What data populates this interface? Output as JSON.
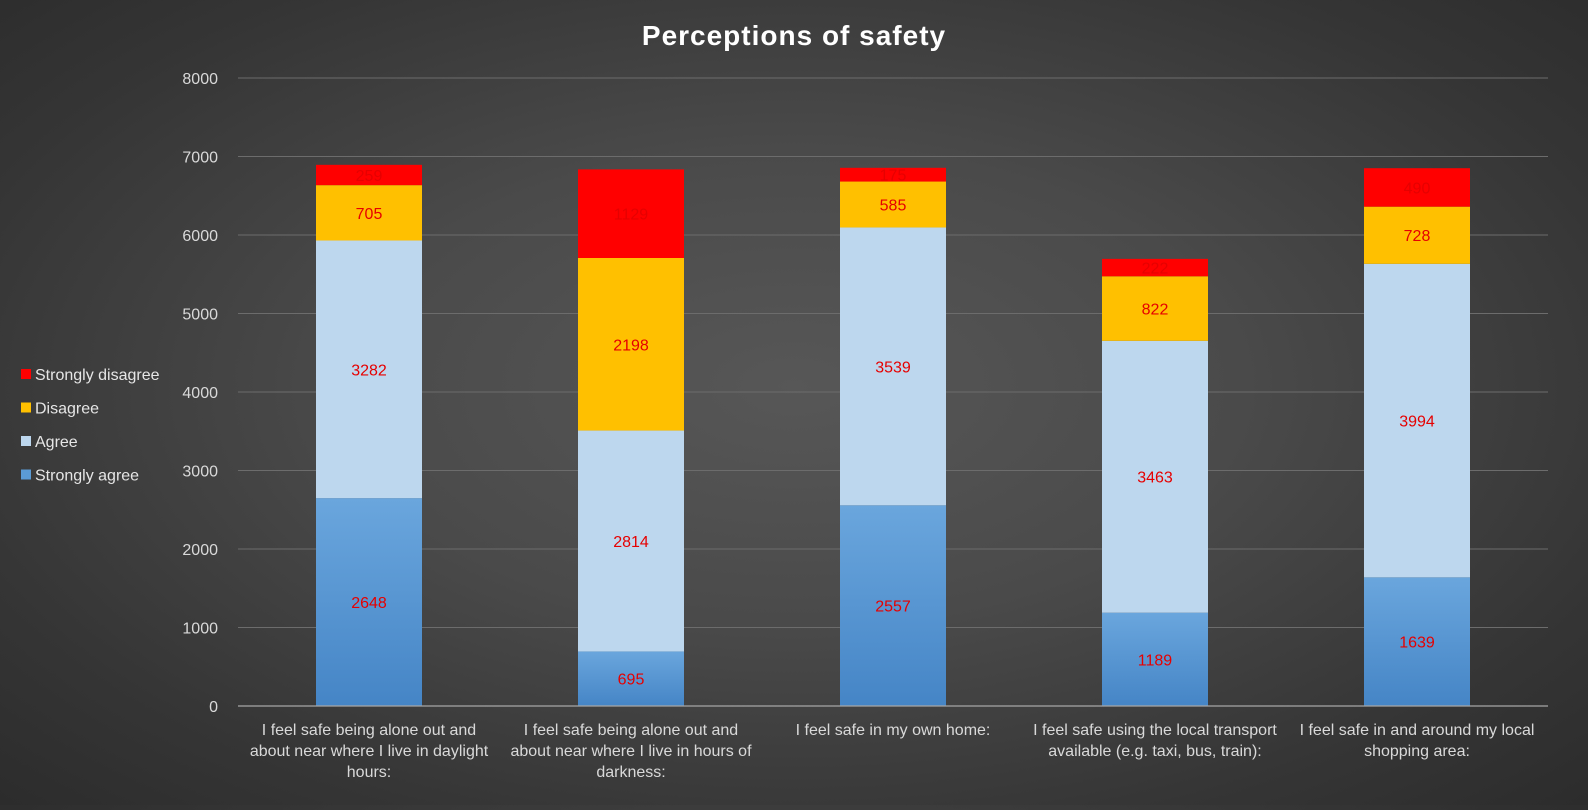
{
  "chart_data": {
    "type": "bar",
    "stacked": true,
    "title": "Perceptions of safety",
    "xlabel": "",
    "ylabel": "",
    "ylim": [
      0,
      8000
    ],
    "yticks": [
      0,
      1000,
      2000,
      3000,
      4000,
      5000,
      6000,
      7000,
      8000
    ],
    "grid": true,
    "legend_position": "left",
    "categories": [
      [
        "I feel safe being alone out and",
        "about near where I live in daylight",
        "hours:"
      ],
      [
        "I feel safe being alone out and",
        "about near where I live in hours of",
        "darkness:"
      ],
      [
        "I feel safe in my own home:"
      ],
      [
        "I feel safe using the local transport",
        "available (e.g. taxi, bus, train):"
      ],
      [
        "I feel safe in and around my local",
        "shopping area:"
      ]
    ],
    "series": [
      {
        "name": "Strongly agree",
        "color": "#5b9bd5",
        "values": [
          2648,
          695,
          2557,
          1189,
          1639
        ]
      },
      {
        "name": "Agree",
        "color": "#bdd7ee",
        "values": [
          3282,
          2814,
          3539,
          3463,
          3994
        ]
      },
      {
        "name": "Disagree",
        "color": "#ffc000",
        "values": [
          705,
          2198,
          585,
          822,
          728
        ]
      },
      {
        "name": "Strongly disagree",
        "color": "#ff0000",
        "values": [
          259,
          1129,
          175,
          222,
          490
        ]
      }
    ],
    "data_label_color": "#e60000"
  }
}
